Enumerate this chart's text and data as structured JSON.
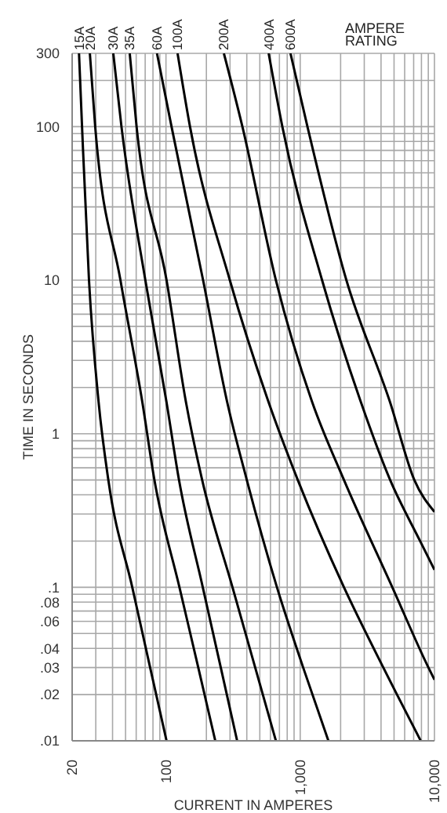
{
  "chart_data": {
    "type": "line",
    "xlabel": "CURRENT IN AMPERES",
    "ylabel": "TIME IN SECONDS",
    "legend_title": "AMPERE RATING",
    "log": "xy",
    "grid": true,
    "marker": "none",
    "line_style": "solid",
    "xlim": [
      20,
      10000
    ],
    "xticks": [
      20,
      {
        "value": 30,
        "label": null
      },
      {
        "value": 40,
        "label": null
      },
      {
        "value": 50,
        "label": null
      },
      {
        "value": 60,
        "label": null
      },
      {
        "value": 70,
        "label": null
      },
      {
        "value": 80,
        "label": null
      },
      {
        "value": 90,
        "label": null
      },
      100,
      {
        "value": 200,
        "label": null
      },
      {
        "value": 300,
        "label": null
      },
      {
        "value": 400,
        "label": null
      },
      {
        "value": 500,
        "label": null
      },
      {
        "value": 600,
        "label": null
      },
      {
        "value": 700,
        "label": null
      },
      {
        "value": 800,
        "label": null
      },
      {
        "value": 900,
        "label": null
      },
      {
        "value": 1000,
        "label": "1,000"
      },
      {
        "value": 2000,
        "label": null
      },
      {
        "value": 3000,
        "label": null
      },
      {
        "value": 4000,
        "label": null
      },
      {
        "value": 5000,
        "label": null
      },
      {
        "value": 6000,
        "label": null
      },
      {
        "value": 7000,
        "label": null
      },
      {
        "value": 8000,
        "label": null
      },
      {
        "value": 9000,
        "label": null
      },
      {
        "value": 10000,
        "label": "10,000"
      }
    ],
    "ylim": [
      0.01,
      300
    ],
    "yticks": [
      {
        "value": 0.01,
        "label": ".01"
      },
      {
        "value": 0.02,
        "label": ".02"
      },
      {
        "value": 0.03,
        "label": ".03"
      },
      {
        "value": 0.04,
        "label": ".04"
      },
      {
        "value": 0.05,
        "label": null
      },
      {
        "value": 0.06,
        "label": ".06"
      },
      {
        "value": 0.07,
        "label": null
      },
      {
        "value": 0.08,
        "label": ".08"
      },
      {
        "value": 0.09,
        "label": null
      },
      {
        "value": 0.1,
        "label": ".1"
      },
      {
        "value": 0.2,
        "label": null
      },
      {
        "value": 0.3,
        "label": null
      },
      {
        "value": 0.4,
        "label": null
      },
      {
        "value": 0.5,
        "label": null
      },
      {
        "value": 0.6,
        "label": null
      },
      {
        "value": 0.7,
        "label": null
      },
      {
        "value": 0.8,
        "label": null
      },
      {
        "value": 0.9,
        "label": null
      },
      1,
      {
        "value": 2,
        "label": null
      },
      {
        "value": 3,
        "label": null
      },
      {
        "value": 4,
        "label": null
      },
      {
        "value": 5,
        "label": null
      },
      {
        "value": 6,
        "label": null
      },
      {
        "value": 7,
        "label": null
      },
      {
        "value": 8,
        "label": null
      },
      {
        "value": 9,
        "label": null
      },
      10,
      {
        "value": 20,
        "label": null
      },
      {
        "value": 30,
        "label": null
      },
      {
        "value": 40,
        "label": null
      },
      {
        "value": 50,
        "label": null
      },
      {
        "value": 60,
        "label": null
      },
      {
        "value": 70,
        "label": null
      },
      {
        "value": 80,
        "label": null
      },
      {
        "value": 90,
        "label": null
      },
      100,
      {
        "value": 200,
        "label": null
      },
      300
    ],
    "series": [
      {
        "name": "15A",
        "color": "#000000",
        "x": [
          22.5,
          23.7,
          26.7,
          31.5,
          37.2,
          56.1,
          76.2,
          101
        ],
        "values": [
          300,
          100,
          10,
          1.6,
          0.5,
          0.1,
          0.03,
          0.01
        ]
      },
      {
        "name": "20A",
        "color": "#000000",
        "x": [
          27.1,
          29.7,
          45.8,
          66.7,
          82,
          126,
          174,
          233
        ],
        "values": [
          300,
          100,
          10,
          1.6,
          0.5,
          0.1,
          0.03,
          0.01
        ]
      },
      {
        "name": "30A",
        "color": "#000000",
        "x": [
          40.5,
          46.6,
          70.2,
          101,
          125,
          188,
          256,
          339
        ],
        "values": [
          300,
          100,
          10,
          1.6,
          0.5,
          0.1,
          0.03,
          0.01
        ]
      },
      {
        "name": "35A",
        "color": "#000000",
        "x": [
          53.7,
          60.4,
          101,
          141,
          186,
          313,
          462,
          659
        ],
        "values": [
          300,
          100,
          10,
          1.6,
          0.5,
          0.1,
          0.03,
          0.01
        ]
      },
      {
        "name": "60A",
        "color": "#000000",
        "x": [
          85.7,
          110,
          189,
          286,
          400,
          671,
          1052,
          1622
        ],
        "values": [
          300,
          100,
          10,
          1.6,
          0.5,
          0.1,
          0.03,
          0.01
        ]
      },
      {
        "name": "100A",
        "color": "#000000",
        "x": [
          122,
          151,
          299,
          582,
          959,
          2118,
          4159,
          7907
        ],
        "values": [
          300,
          100,
          10,
          1.6,
          0.5,
          0.1,
          0.03,
          0.01
        ]
      },
      {
        "name": "200A",
        "color": "#000000",
        "x": [
          270,
          371,
          659,
          1230,
          2118,
          4855,
          9016,
          10000
        ],
        "values": [
          300,
          100,
          10,
          1.6,
          0.5,
          0.1,
          0.03,
          0.025
        ]
      },
      {
        "name": "400A",
        "color": "#000000",
        "x": [
          582,
          736,
          1455,
          2836,
          4677,
          7816,
          10000
        ],
        "values": [
          300,
          100,
          10,
          1.6,
          0.5,
          0.2,
          0.13
        ]
      },
      {
        "name": "600A",
        "color": "#000000",
        "x": [
          846,
          1132,
          2208,
          4674,
          7080,
          10000
        ],
        "values": [
          300,
          100,
          10,
          1.6,
          0.5,
          0.31
        ]
      }
    ]
  }
}
